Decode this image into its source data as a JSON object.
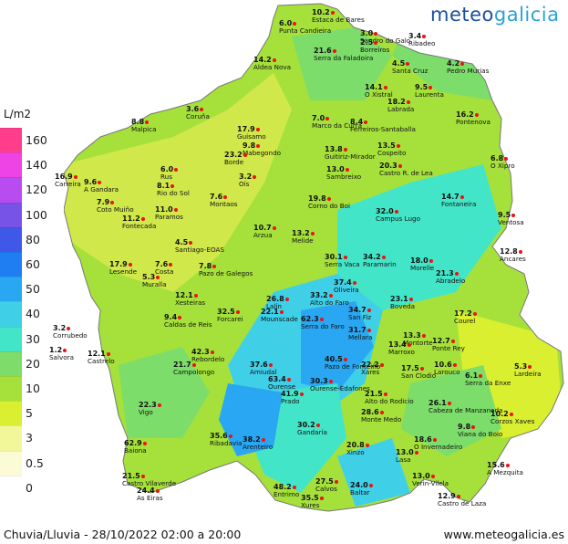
{
  "brand": {
    "part1": "meteo",
    "part2": "galicia"
  },
  "legend": {
    "unit": "L/m2",
    "entries": [
      {
        "label": "160",
        "color": "#ff3d8a"
      },
      {
        "label": "140",
        "color": "#ee44e6"
      },
      {
        "label": "120",
        "color": "#b84cf0"
      },
      {
        "label": "100",
        "color": "#7753e8"
      },
      {
        "label": "80",
        "color": "#3f58e8"
      },
      {
        "label": "60",
        "color": "#1f7ff2"
      },
      {
        "label": "50",
        "color": "#2aa7f3"
      },
      {
        "label": "40",
        "color": "#3fd0e8"
      },
      {
        "label": "30",
        "color": "#43e5c8"
      },
      {
        "label": "20",
        "color": "#7cdd6a"
      },
      {
        "label": "10",
        "color": "#a5e13a"
      },
      {
        "label": "5",
        "color": "#d9ef30"
      },
      {
        "label": "3",
        "color": "#f2f79a"
      },
      {
        "label": "0.5",
        "color": "#fbfcd6"
      },
      {
        "label": "0",
        "color": "#ffffff"
      }
    ]
  },
  "stations": [
    {
      "name": "Punta Candieira",
      "value": "6.0"
    },
    {
      "name": "Estaca de Bares",
      "value": "10.2"
    },
    {
      "name": "Serra da Faladoira",
      "value": "21.6"
    },
    {
      "name": "Sandro do Galo",
      "value": "3.0"
    },
    {
      "name": "Borreiros",
      "value": "2.5"
    },
    {
      "name": "Ribadeo",
      "value": "3.4"
    },
    {
      "name": "Aldea Nova",
      "value": "14.2"
    },
    {
      "name": "Santa Cruz",
      "value": "4.5"
    },
    {
      "name": "Pedro Murias",
      "value": "4.2"
    },
    {
      "name": "O Xistral",
      "value": "14.1"
    },
    {
      "name": "Laurenta",
      "value": "9.5"
    },
    {
      "name": "Labrada",
      "value": "18.2"
    },
    {
      "name": "Coruña",
      "value": "3.6"
    },
    {
      "name": "Malpica",
      "value": "8.8"
    },
    {
      "name": "Marco da Curra",
      "value": "7.0"
    },
    {
      "name": "Ferreiros-Santaballa",
      "value": "8.4"
    },
    {
      "name": "Pontenova",
      "value": "16.2"
    },
    {
      "name": "Guisamo",
      "value": "17.9"
    },
    {
      "name": "Mabegondo",
      "value": "9.8"
    },
    {
      "name": "Borde",
      "value": "23.2"
    },
    {
      "name": "Guitiriz-Mirador",
      "value": "13.8"
    },
    {
      "name": "Cospeito",
      "value": "13.5"
    },
    {
      "name": "Carreira",
      "value": "16.9"
    },
    {
      "name": "A Gandara",
      "value": "9.6"
    },
    {
      "name": "Rus",
      "value": "6.0"
    },
    {
      "name": "Rio do Sol",
      "value": "8.1"
    },
    {
      "name": "Oís",
      "value": "3.2"
    },
    {
      "name": "Sambreixo",
      "value": "13.0"
    },
    {
      "name": "Castro R. de Lea",
      "value": "20.3"
    },
    {
      "name": "O Xipro",
      "value": "6.8"
    },
    {
      "name": "Coto Muiño",
      "value": "7.9"
    },
    {
      "name": "Paramos",
      "value": "11.0"
    },
    {
      "name": "Montaos",
      "value": "7.6"
    },
    {
      "name": "Corno do Boi",
      "value": "19.8"
    },
    {
      "name": "Fontaneira",
      "value": "14.7"
    },
    {
      "name": "Fontecada",
      "value": "11.2"
    },
    {
      "name": "Campus Lugo",
      "value": "32.0"
    },
    {
      "name": "Ventosa",
      "value": "9.5"
    },
    {
      "name": "Santiago-EOAS",
      "value": "4.5"
    },
    {
      "name": "Arzua",
      "value": "10.7"
    },
    {
      "name": "Melide",
      "value": "13.2"
    },
    {
      "name": "Ancares",
      "value": "12.8"
    },
    {
      "name": "Serra Vaca",
      "value": "30.1"
    },
    {
      "name": "Paramarin",
      "value": "34.2"
    },
    {
      "name": "Morelle",
      "value": "18.0"
    },
    {
      "name": "Abradelo",
      "value": "21.3"
    },
    {
      "name": "Lesende",
      "value": "17.9"
    },
    {
      "name": "Costa",
      "value": "7.6"
    },
    {
      "name": "Pazo de Galegos",
      "value": "7.8"
    },
    {
      "name": "Oliveira",
      "value": "37.4"
    },
    {
      "name": "Muralla",
      "value": "5.3"
    },
    {
      "name": "Xesteiras",
      "value": "12.1"
    },
    {
      "name": "Alto do Faro",
      "value": "33.2"
    },
    {
      "name": "Boveda",
      "value": "23.1"
    },
    {
      "name": "Caldas de Reis",
      "value": "9.4"
    },
    {
      "name": "Forcarei",
      "value": "32.5"
    },
    {
      "name": "Lalín",
      "value": "26.8"
    },
    {
      "name": "Mounscade",
      "value": "22.1"
    },
    {
      "name": "San Fiz",
      "value": "34.7"
    },
    {
      "name": "Courel",
      "value": "17.2"
    },
    {
      "name": "Serra do Faro",
      "value": "62.3"
    },
    {
      "name": "Mellara",
      "value": "31.7"
    },
    {
      "name": "Montorte",
      "value": "13.3"
    },
    {
      "name": "Corrubedo",
      "value": "3.2"
    },
    {
      "name": "Salvora",
      "value": "1.2"
    },
    {
      "name": "Castrelo",
      "value": "12.1"
    },
    {
      "name": "Rebordelo",
      "value": "42.3"
    },
    {
      "name": "Campolongo",
      "value": "21.7"
    },
    {
      "name": "Pazo de Fonteiño",
      "value": "40.5"
    },
    {
      "name": "Xares",
      "value": "22.2"
    },
    {
      "name": "Marroxo",
      "value": "13.4"
    },
    {
      "name": "Ponte Rey",
      "value": "12.7"
    },
    {
      "name": "San Clodio",
      "value": "17.5"
    },
    {
      "name": "Larouco",
      "value": "10.6"
    },
    {
      "name": "Serra da Enxe",
      "value": "6.1"
    },
    {
      "name": "Lardeira",
      "value": "5.3"
    },
    {
      "name": "Amiudal",
      "value": "37.6"
    },
    {
      "name": "Ourense",
      "value": "63.4"
    },
    {
      "name": "Prado",
      "value": "41.9"
    },
    {
      "name": "Ourense-Edafones",
      "value": "30.3"
    },
    {
      "name": "Alto do Rodicio",
      "value": "21.5"
    },
    {
      "name": "Cabeza de Manzaneda",
      "value": "26.1"
    },
    {
      "name": "Vigo",
      "value": "22.3"
    },
    {
      "name": "Monte Medo",
      "value": "28.6"
    },
    {
      "name": "Corzos Xaves",
      "value": "10.2"
    },
    {
      "name": "Gandaría",
      "value": "30.2"
    },
    {
      "name": "Viana do Bolo",
      "value": "9.8"
    },
    {
      "name": "Baiona",
      "value": "62.9"
    },
    {
      "name": "Ribadavia",
      "value": "35.6"
    },
    {
      "name": "Xinzo",
      "value": "20.8"
    },
    {
      "name": "O Invernadeiro",
      "value": "18.6"
    },
    {
      "name": "Arenteiro",
      "value": "38.2"
    },
    {
      "name": "Castro Vilaverde",
      "value": "21.5"
    },
    {
      "name": "As Eiras",
      "value": "24.4"
    },
    {
      "name": "Calvos",
      "value": "27.5"
    },
    {
      "name": "Baltar",
      "value": "24.0"
    },
    {
      "name": "Lasa",
      "value": "13.0"
    },
    {
      "name": "Verin-Vilela",
      "value": "13.0"
    },
    {
      "name": "A Mezquita",
      "value": "15.6"
    },
    {
      "name": "Entrimo",
      "value": "48.2"
    },
    {
      "name": "Xures",
      "value": "35.5"
    },
    {
      "name": "Castro de Laza",
      "value": "12.9"
    }
  ],
  "footer": {
    "title": "Chuvia/Lluvia - 28/10/2022 02:00 a 20:00",
    "url": "www.meteogalicia.es"
  }
}
